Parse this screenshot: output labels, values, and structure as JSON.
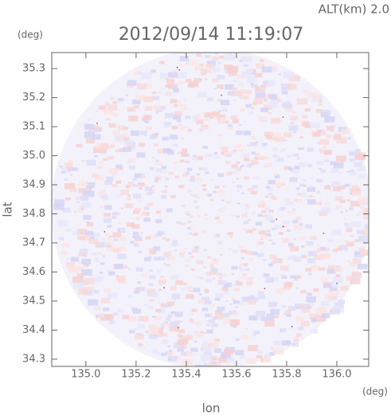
{
  "chart_data": {
    "type": "radar-map",
    "title": "2012/09/14 11:19:07",
    "subtitle": "ALT(km) 2.0",
    "x_label": "lon",
    "y_label": "lat",
    "x_unit": "(deg)",
    "y_unit": "(deg)",
    "xlim": [
      134.864,
      136.127
    ],
    "ylim": [
      34.275,
      35.355
    ],
    "xticks": [
      {
        "value": 135,
        "label": "135.0"
      },
      135.2,
      135.4,
      135.6,
      135.8,
      {
        "value": 136,
        "label": "136.0"
      }
    ],
    "yticks": [
      34.3,
      34.4,
      34.5,
      34.6,
      34.7,
      34.8,
      34.9,
      {
        "value": 35,
        "label": "35.0"
      },
      35.1,
      35.2,
      35.3
    ]
  }
}
